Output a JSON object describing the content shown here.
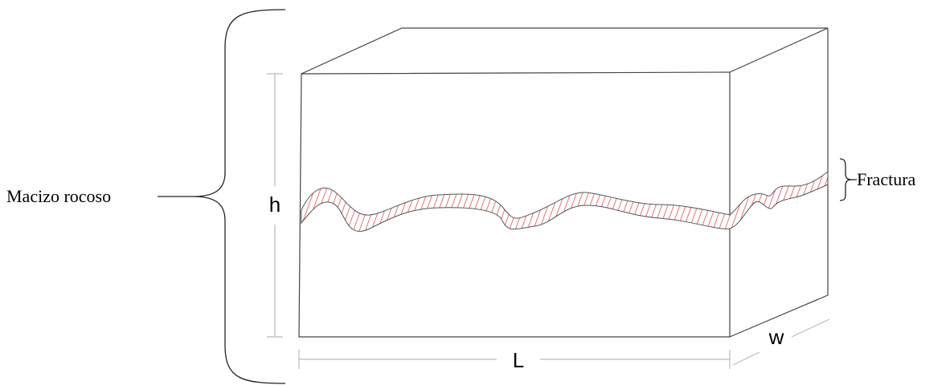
{
  "labels": {
    "rock_mass": "Macizo rocoso",
    "height": "h",
    "fracture": "Fractura",
    "length": "L",
    "width": "w"
  }
}
